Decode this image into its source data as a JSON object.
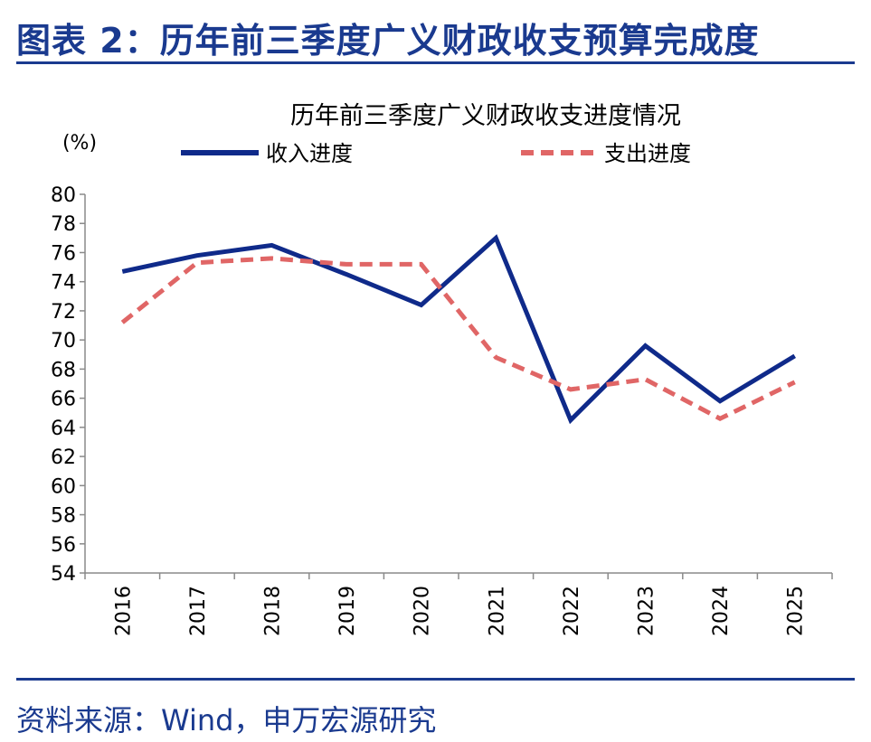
{
  "figure_title": "图表 2：历年前三季度广义财政收支预算完成度",
  "source": "资料来源：Wind，申万宏源研究",
  "chart_data": {
    "type": "line",
    "title": "历年前三季度广义财政收支进度情况",
    "unit_label": "(%)",
    "x": [
      "2016",
      "2017",
      "2018",
      "2019",
      "2020",
      "2021",
      "2022",
      "2023",
      "2024",
      "2025"
    ],
    "ylim": [
      54,
      80
    ],
    "yticks": [
      "80",
      "78",
      "76",
      "74",
      "72",
      "70",
      "68",
      "66",
      "64",
      "62",
      "60",
      "58",
      "56",
      "54"
    ],
    "grid": false,
    "legend_position": "top",
    "series": [
      {
        "name": "收入进度",
        "color": "#0f2a8a",
        "style": "solid",
        "values": [
          74.7,
          75.8,
          76.5,
          74.5,
          72.4,
          77.0,
          64.5,
          69.6,
          65.8,
          68.9
        ]
      },
      {
        "name": "支出进度",
        "color": "#e06666",
        "style": "dashed",
        "values": [
          71.2,
          75.3,
          75.6,
          75.2,
          75.2,
          68.8,
          66.6,
          67.3,
          64.6,
          67.1
        ]
      }
    ]
  }
}
